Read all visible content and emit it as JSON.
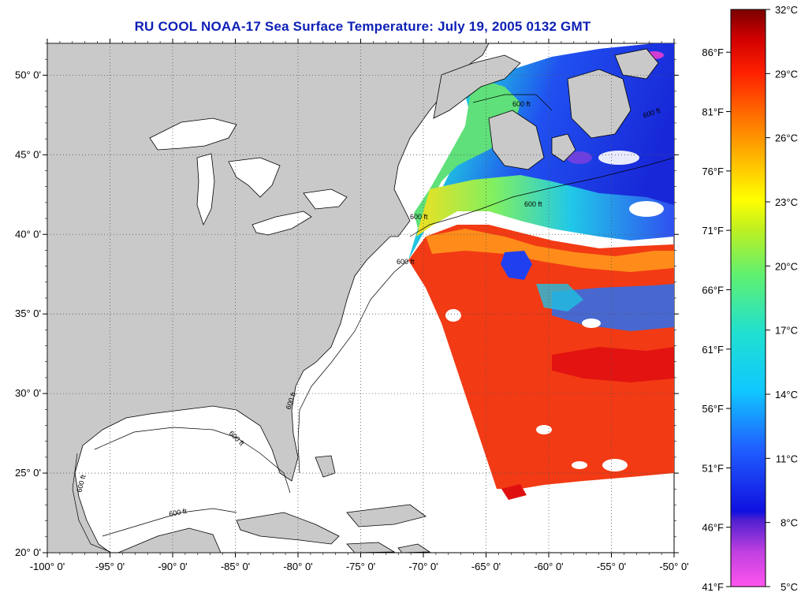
{
  "title": "RU COOL  NOAA-17  Sea Surface Temperature:  July 19, 2005 0132 GMT",
  "map": {
    "lon_range": [
      -100,
      -50
    ],
    "lat_range": [
      20,
      52
    ],
    "lon_ticks": [
      "-100° 0'",
      "-95° 0'",
      "-90° 0'",
      "-85° 0'",
      "-80° 0'",
      "-75° 0'",
      "-70° 0'",
      "-65° 0'",
      "-60° 0'",
      "-55° 0'",
      "-50° 0'"
    ],
    "lat_ticks": [
      "20° 0'",
      "25° 0'",
      "30° 0'",
      "35° 0'",
      "40° 0'",
      "45° 0'",
      "50° 0'"
    ],
    "grid": "dotted",
    "land_color": "#c9c9c9",
    "ocean_no_data_color": "#ffffff",
    "contour_label": "600 ft"
  },
  "colorbar": {
    "celsius_labels": [
      "32°C",
      "29°C",
      "26°C",
      "23°C",
      "20°C",
      "17°C",
      "14°C",
      "11°C",
      "8°C",
      "5°C"
    ],
    "fahrenheit_labels": [
      "86°F",
      "81°F",
      "76°F",
      "71°F",
      "66°F",
      "61°F",
      "56°F",
      "51°F",
      "46°F",
      "41°F"
    ],
    "range_celsius": [
      5,
      32
    ]
  },
  "colors": {
    "title": "#0d1fb5",
    "warm": "#f23a14",
    "hot": "#e01010",
    "orange": "#ff8c1a",
    "yellow": "#e8f000",
    "green": "#6ef06a",
    "cyan": "#20d8e0",
    "blue": "#2040f0",
    "deep_blue": "#1020d0",
    "purple": "#9040e0",
    "magenta": "#ff40d0"
  }
}
